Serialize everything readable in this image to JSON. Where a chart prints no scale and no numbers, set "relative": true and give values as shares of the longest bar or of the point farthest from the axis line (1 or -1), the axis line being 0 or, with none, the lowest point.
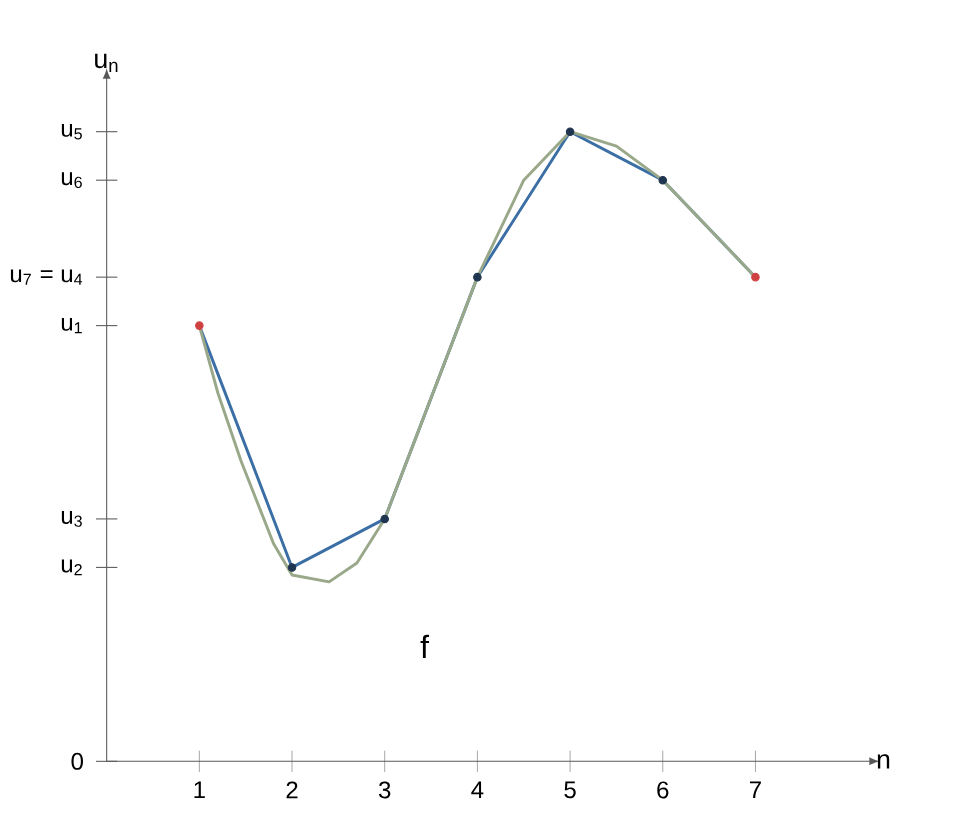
{
  "chart_data": {
    "type": "line",
    "xlabel": "n",
    "ylabel": "u$_{n}$",
    "relative": true,
    "xlim": [
      0,
      8.2
    ],
    "xticks": [
      1,
      2,
      3,
      4,
      5,
      6,
      7
    ],
    "series": [
      {
        "color": "#3a6ea5",
        "marker": "circle",
        "x": [
          1,
          2,
          3,
          4,
          5,
          6,
          7
        ],
        "values": [
          0.692,
          0.308,
          0.385,
          0.769,
          1,
          0.923,
          0.769
        ],
        "colors": [
          "#d04040",
          "#1f3550",
          "#1f3550",
          "#1f3550",
          "#1f3550",
          "#1f3550",
          "#d04040"
        ]
      },
      {
        "color": "#9aa88a",
        "marker": "none",
        "x": [
          1,
          1.2,
          1.45,
          1.8,
          2,
          2.4,
          2.7,
          3,
          3.5,
          4,
          4.5,
          5,
          5.5,
          6,
          6.5,
          7
        ],
        "values": [
          0.692,
          0.585,
          0.477,
          0.346,
          0.296,
          0.285,
          0.315,
          0.385,
          0.577,
          0.769,
          0.923,
          1,
          0.977,
          0.923,
          0.846,
          0.769
        ]
      }
    ],
    "annotations": [
      "f",
      "0",
      "u$_{2}$",
      "u$_{3}$",
      "u$_{1}$",
      "u$_{7}$ = u$_{4}$",
      "u$_{6}$",
      "u$_{5}$"
    ]
  }
}
